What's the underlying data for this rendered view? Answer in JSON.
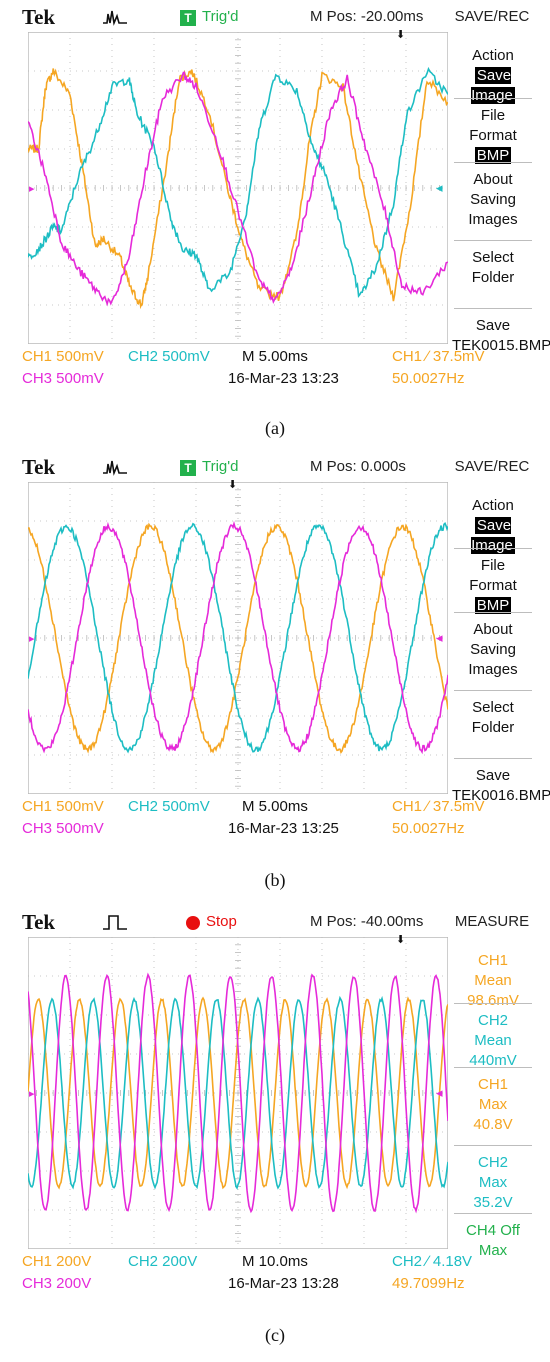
{
  "colors": {
    "ch1": "#f5a623",
    "ch2": "#1dbdc3",
    "ch3": "#e52ad9",
    "ch4": "#22b14c",
    "grid": "#b9b9b9",
    "stop": "#e81010"
  },
  "panels": [
    {
      "caption": "(a)",
      "brand": "Tek",
      "acq_icon": "pulse-icon",
      "status": {
        "kind": "trig",
        "icon_label": "T",
        "text": "Trig'd"
      },
      "mpos": "M Pos: -20.00ms",
      "menu": {
        "title": "SAVE/REC",
        "items": [
          {
            "lines": [
              "Action"
            ],
            "hl": "Save Image"
          },
          {
            "lines": [
              "File",
              "Format"
            ],
            "hl": "BMP"
          },
          {
            "lines": [
              "About",
              "Saving",
              "Images"
            ],
            "hl": ""
          },
          {
            "lines": [
              "Select",
              "Folder"
            ],
            "hl": ""
          },
          {
            "lines": [
              "Save",
              "TEK0015.BMP"
            ],
            "hl": ""
          }
        ]
      },
      "footer": {
        "ch1": "CH1  500mV",
        "ch2": "CH2  500mV",
        "ch3": "CH3  500mV",
        "timebase": "M 5.00ms",
        "datetime": "16-Mar-23 13:23",
        "trigger": "CH1  ∕  37.5mV",
        "freq": "50.0027Hz"
      }
    },
    {
      "caption": "(b)",
      "brand": "Tek",
      "acq_icon": "pulse-icon",
      "status": {
        "kind": "trig",
        "icon_label": "T",
        "text": "Trig'd"
      },
      "mpos": "M Pos: 0.000s",
      "menu": {
        "title": "SAVE/REC",
        "items": [
          {
            "lines": [
              "Action"
            ],
            "hl": "Save Image"
          },
          {
            "lines": [
              "File",
              "Format"
            ],
            "hl": "BMP"
          },
          {
            "lines": [
              "About",
              "Saving",
              "Images"
            ],
            "hl": ""
          },
          {
            "lines": [
              "Select",
              "Folder"
            ],
            "hl": ""
          },
          {
            "lines": [
              "Save",
              "TEK0016.BMP"
            ],
            "hl": ""
          }
        ]
      },
      "footer": {
        "ch1": "CH1  500mV",
        "ch2": "CH2  500mV",
        "ch3": "CH3  500mV",
        "timebase": "M 5.00ms",
        "datetime": "16-Mar-23 13:25",
        "trigger": "CH1  ∕  37.5mV",
        "freq": "50.0027Hz"
      }
    },
    {
      "caption": "(c)",
      "brand": "Tek",
      "acq_icon": "pulse-icon",
      "status": {
        "kind": "stop",
        "icon_label": "",
        "text": "Stop"
      },
      "mpos": "M Pos: -40.00ms",
      "menu": {
        "title": "MEASURE",
        "items": [
          {
            "lines": [
              "CH1",
              "Mean",
              "98.6mV"
            ],
            "hl": "",
            "color": "ch1"
          },
          {
            "lines": [
              "CH2",
              "Mean",
              "440mV"
            ],
            "hl": "",
            "color": "ch2"
          },
          {
            "lines": [
              "CH1",
              "Max",
              "40.8V"
            ],
            "hl": "",
            "color": "ch1"
          },
          {
            "lines": [
              "CH2",
              "Max",
              "35.2V"
            ],
            "hl": "",
            "color": "ch2"
          },
          {
            "lines": [
              "CH4 Off",
              "Max"
            ],
            "hl": "",
            "color": "ch4"
          }
        ]
      },
      "footer": {
        "ch1": "CH1  200V",
        "ch2": "CH2  200V",
        "ch3": "CH3  200V",
        "timebase": "M 10.0ms",
        "datetime": "16-Mar-23 13:28",
        "trigger": "CH2  ∕  4.18V",
        "freq": "49.7099Hz"
      }
    }
  ],
  "chart_data": [
    {
      "type": "line",
      "x_unit": "div",
      "y_unit": "div",
      "xlim": [
        0,
        10
      ],
      "ylim": [
        -4,
        4
      ],
      "grid": true,
      "series": [
        {
          "name": "CH1",
          "color": "ch1",
          "x": [
            0,
            0.25,
            0.42,
            0.6,
            1.0,
            1.3,
            1.6,
            1.8,
            2.2,
            2.45,
            2.7,
            2.85,
            3.3,
            3.6,
            3.9,
            4.3,
            4.8,
            5.1,
            5.5,
            6.0,
            6.4,
            6.7,
            7.0,
            7.5,
            7.9,
            8.3,
            8.7,
            9.1,
            9.5,
            10
          ],
          "y": [
            1.0,
            1.0,
            2.6,
            3.0,
            2.4,
            0.5,
            -1.5,
            -1.3,
            -1.8,
            -2.6,
            -3.0,
            -2.3,
            0.6,
            2.8,
            3.0,
            2.0,
            -0.2,
            -1.4,
            -2.6,
            -2.8,
            -1.2,
            1.2,
            2.9,
            2.6,
            0.3,
            -1.6,
            -2.8,
            -0.5,
            2.8,
            2.2
          ]
        },
        {
          "name": "CH2",
          "color": "ch2",
          "x": [
            0,
            0.3,
            0.6,
            0.8,
            1.2,
            1.6,
            2.0,
            2.4,
            2.6,
            3.0,
            3.4,
            3.7,
            4.0,
            4.3,
            4.8,
            5.2,
            5.5,
            5.9,
            6.4,
            6.8,
            7.1,
            7.5,
            7.9,
            8.3,
            8.7,
            9.0,
            9.5,
            10
          ],
          "y": [
            -1.8,
            -1.5,
            -1.0,
            -1.1,
            0.3,
            1.3,
            2.6,
            2.8,
            1.9,
            1.1,
            -0.8,
            -1.6,
            -1.7,
            -2.6,
            -2.2,
            -0.6,
            1.5,
            2.9,
            2.5,
            1.0,
            0.3,
            -1.2,
            -2.8,
            -2.0,
            -0.4,
            1.8,
            3.0,
            2.4
          ]
        },
        {
          "name": "CH3",
          "color": "ch3",
          "x": [
            0,
            0.4,
            0.8,
            1.2,
            1.6,
            2.0,
            2.4,
            2.8,
            3.2,
            3.7,
            4.0,
            4.5,
            5.0,
            5.5,
            5.9,
            6.3,
            6.8,
            7.2,
            7.6,
            8.0,
            8.5,
            8.9,
            9.4,
            10
          ],
          "y": [
            1.7,
            0.4,
            -1.4,
            -2.1,
            -2.6,
            -3.0,
            -1.8,
            0.4,
            2.3,
            2.9,
            2.6,
            1.2,
            -0.6,
            -2.4,
            -2.9,
            -2.0,
            0.2,
            2.0,
            2.8,
            1.2,
            -0.6,
            -2.5,
            -2.7,
            -1.9
          ]
        }
      ]
    },
    {
      "type": "line",
      "x_unit": "div",
      "y_unit": "div",
      "xlim": [
        0,
        10
      ],
      "ylim": [
        -4,
        4
      ],
      "grid": true,
      "series": [
        {
          "name": "CH1",
          "color": "ch1",
          "sine": {
            "amp": 2.85,
            "period_div": 3.0,
            "phase_deg": 100
          }
        },
        {
          "name": "CH2",
          "color": "ch2",
          "sine": {
            "amp": 2.85,
            "period_div": 3.0,
            "phase_deg": 340
          }
        },
        {
          "name": "CH3",
          "color": "ch3",
          "sine": {
            "amp": 2.85,
            "period_div": 3.0,
            "phase_deg": 220
          }
        }
      ]
    },
    {
      "type": "line",
      "x_unit": "div",
      "y_unit": "div",
      "xlim": [
        0,
        10
      ],
      "ylim": [
        -4,
        4
      ],
      "grid": true,
      "series": [
        {
          "name": "CH1",
          "color": "ch1",
          "sine": {
            "amp": 2.4,
            "period_div": 0.98,
            "phase_deg": 0
          }
        },
        {
          "name": "CH2",
          "color": "ch2",
          "sine": {
            "amp": 2.4,
            "period_div": 0.98,
            "phase_deg": 240
          }
        },
        {
          "name": "CH3",
          "color": "ch3",
          "sine": {
            "amp": 3.0,
            "period_div": 0.98,
            "phase_deg": 120
          }
        }
      ]
    }
  ]
}
